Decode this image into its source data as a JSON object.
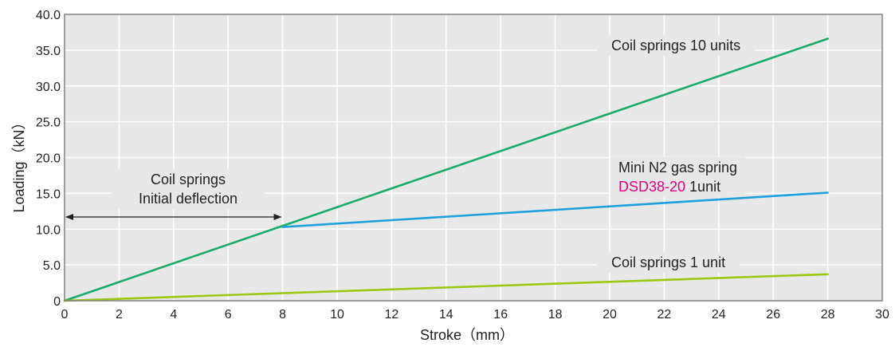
{
  "chart_data": {
    "type": "line",
    "xlabel": "Stroke（mm）",
    "ylabel": "Loading（kN）",
    "xlim": [
      0,
      30
    ],
    "ylim": [
      0,
      40
    ],
    "x_ticks": [
      "0",
      "2",
      "4",
      "6",
      "8",
      "10",
      "12",
      "14",
      "16",
      "18",
      "20",
      "22",
      "24",
      "26",
      "28",
      "30"
    ],
    "y_ticks": [
      "0",
      "5.0",
      "10.0",
      "15.0",
      "20.0",
      "25.0",
      "30.0",
      "35.0",
      "40.0"
    ],
    "grid": true,
    "plot_background": "#e8e8e8",
    "grid_color": "#ffffff",
    "series": [
      {
        "name": "Coil springs 10 units",
        "color": "#1aaa6a",
        "points": [
          [
            0,
            0
          ],
          [
            28,
            36.6
          ]
        ]
      },
      {
        "name": "Mini N2 gas spring DSD38-20 1unit",
        "color": "#1ea0dc",
        "points": [
          [
            8,
            10.3
          ],
          [
            28,
            15.1
          ]
        ]
      },
      {
        "name": "Coil springs 1 unit",
        "color": "#9cc813",
        "points": [
          [
            0,
            0
          ],
          [
            28,
            3.7
          ]
        ]
      }
    ],
    "annotations": {
      "coil10": "Coil springs 10 units",
      "gas_line1": "Mini N2 gas spring",
      "gas_model": "DSD38-20",
      "gas_unit": " 1unit",
      "coil1": "Coil springs 1 unit",
      "deflection_line1": "Coil springs",
      "deflection_line2": "Initial deflection"
    },
    "deflection_arrow": {
      "x_from": 0,
      "x_to": 8,
      "y": 11.7
    }
  }
}
